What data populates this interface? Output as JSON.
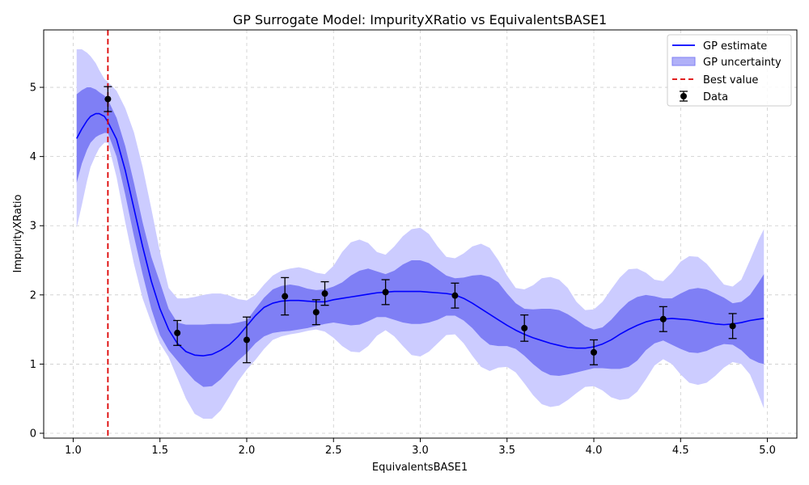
{
  "chart_data": {
    "type": "line",
    "title": "GP Surrogate Model: ImpurityXRatio vs EquivalentsBASE1",
    "xlabel": "EquivalentsBASE1",
    "ylabel": "ImpurityXRatio",
    "xlim": [
      0.83,
      5.17
    ],
    "ylim": [
      -0.07,
      5.83
    ],
    "x_ticks": [
      "1.0",
      "1.5",
      "2.0",
      "2.5",
      "3.0",
      "3.5",
      "4.0",
      "4.5",
      "5.0"
    ],
    "y_ticks": [
      "0",
      "1",
      "2",
      "3",
      "4",
      "5"
    ],
    "grid": true,
    "legend_position": "top-right",
    "legend": [
      "GP estimate",
      "GP uncertainty",
      "Best value",
      "Data"
    ],
    "best_value_x": 1.2,
    "gp": {
      "x": [
        1.02,
        1.05,
        1.08,
        1.1,
        1.13,
        1.15,
        1.18,
        1.2,
        1.25,
        1.3,
        1.35,
        1.4,
        1.45,
        1.5,
        1.55,
        1.6,
        1.65,
        1.7,
        1.75,
        1.8,
        1.85,
        1.9,
        1.95,
        2.0,
        2.05,
        2.1,
        2.15,
        2.2,
        2.25,
        2.3,
        2.35,
        2.4,
        2.45,
        2.5,
        2.55,
        2.6,
        2.65,
        2.7,
        2.75,
        2.8,
        2.85,
        2.9,
        2.95,
        3.0,
        3.05,
        3.1,
        3.15,
        3.2,
        3.25,
        3.3,
        3.35,
        3.4,
        3.45,
        3.5,
        3.55,
        3.6,
        3.65,
        3.7,
        3.75,
        3.8,
        3.85,
        3.9,
        3.95,
        4.0,
        4.05,
        4.1,
        4.15,
        4.2,
        4.25,
        4.3,
        4.35,
        4.4,
        4.45,
        4.5,
        4.55,
        4.6,
        4.65,
        4.7,
        4.75,
        4.8,
        4.85,
        4.9,
        4.95,
        4.98
      ],
      "mean": [
        4.26,
        4.4,
        4.52,
        4.58,
        4.62,
        4.62,
        4.58,
        4.5,
        4.25,
        3.8,
        3.25,
        2.7,
        2.2,
        1.8,
        1.5,
        1.3,
        1.18,
        1.13,
        1.12,
        1.14,
        1.2,
        1.28,
        1.4,
        1.55,
        1.7,
        1.82,
        1.88,
        1.91,
        1.92,
        1.92,
        1.91,
        1.9,
        1.9,
        1.93,
        1.95,
        1.97,
        1.99,
        2.01,
        2.03,
        2.04,
        2.05,
        2.05,
        2.05,
        2.05,
        2.04,
        2.03,
        2.02,
        2.0,
        1.95,
        1.88,
        1.8,
        1.72,
        1.64,
        1.56,
        1.49,
        1.43,
        1.38,
        1.34,
        1.3,
        1.27,
        1.24,
        1.23,
        1.23,
        1.25,
        1.29,
        1.35,
        1.43,
        1.5,
        1.56,
        1.61,
        1.64,
        1.65,
        1.66,
        1.65,
        1.64,
        1.62,
        1.6,
        1.58,
        1.57,
        1.58,
        1.6,
        1.63,
        1.65,
        1.66
      ],
      "inner_lower": [
        3.62,
        3.9,
        4.1,
        4.2,
        4.28,
        4.31,
        4.34,
        4.34,
        4.0,
        3.45,
        2.85,
        2.3,
        1.8,
        1.42,
        1.2,
        1.05,
        0.9,
        0.76,
        0.67,
        0.68,
        0.78,
        0.92,
        1.05,
        1.16,
        1.3,
        1.4,
        1.45,
        1.47,
        1.48,
        1.5,
        1.52,
        1.55,
        1.58,
        1.6,
        1.58,
        1.56,
        1.57,
        1.62,
        1.68,
        1.68,
        1.64,
        1.6,
        1.58,
        1.58,
        1.6,
        1.64,
        1.7,
        1.7,
        1.63,
        1.52,
        1.38,
        1.28,
        1.26,
        1.26,
        1.22,
        1.12,
        1.0,
        0.9,
        0.84,
        0.83,
        0.85,
        0.88,
        0.91,
        0.94,
        0.94,
        0.93,
        0.93,
        0.96,
        1.05,
        1.2,
        1.3,
        1.34,
        1.28,
        1.22,
        1.17,
        1.16,
        1.19,
        1.25,
        1.29,
        1.28,
        1.2,
        1.08,
        1.02,
        1.0
      ],
      "inner_upper": [
        4.9,
        4.96,
        5.0,
        5.0,
        4.97,
        4.93,
        4.88,
        4.82,
        4.56,
        4.15,
        3.62,
        3.05,
        2.55,
        2.18,
        1.8,
        1.6,
        1.57,
        1.57,
        1.57,
        1.58,
        1.58,
        1.58,
        1.6,
        1.63,
        1.8,
        1.96,
        2.08,
        2.13,
        2.15,
        2.13,
        2.09,
        2.07,
        2.08,
        2.12,
        2.18,
        2.28,
        2.35,
        2.38,
        2.34,
        2.3,
        2.35,
        2.44,
        2.5,
        2.5,
        2.46,
        2.37,
        2.28,
        2.24,
        2.25,
        2.28,
        2.29,
        2.26,
        2.18,
        2.02,
        1.88,
        1.8,
        1.79,
        1.8,
        1.8,
        1.78,
        1.72,
        1.64,
        1.55,
        1.5,
        1.53,
        1.64,
        1.78,
        1.9,
        1.97,
        2.0,
        1.98,
        1.95,
        1.95,
        2.02,
        2.08,
        2.1,
        2.08,
        2.02,
        1.96,
        1.88,
        1.9,
        2.0,
        2.18,
        2.3
      ],
      "outer_lower": [
        2.97,
        3.3,
        3.65,
        3.85,
        4.02,
        4.12,
        4.2,
        4.2,
        3.7,
        3.05,
        2.45,
        1.95,
        1.6,
        1.3,
        1.1,
        0.8,
        0.5,
        0.28,
        0.21,
        0.21,
        0.33,
        0.53,
        0.75,
        0.92,
        1.06,
        1.22,
        1.35,
        1.4,
        1.43,
        1.45,
        1.48,
        1.5,
        1.47,
        1.38,
        1.26,
        1.18,
        1.17,
        1.26,
        1.41,
        1.49,
        1.4,
        1.26,
        1.13,
        1.11,
        1.18,
        1.3,
        1.42,
        1.43,
        1.3,
        1.12,
        0.96,
        0.9,
        0.95,
        0.96,
        0.88,
        0.72,
        0.55,
        0.42,
        0.38,
        0.4,
        0.48,
        0.58,
        0.67,
        0.68,
        0.62,
        0.52,
        0.48,
        0.5,
        0.6,
        0.78,
        0.98,
        1.07,
        1.0,
        0.85,
        0.73,
        0.7,
        0.73,
        0.83,
        0.95,
        1.03,
        1.0,
        0.85,
        0.55,
        0.36
      ],
      "outer_upper": [
        5.55,
        5.55,
        5.5,
        5.45,
        5.35,
        5.25,
        5.12,
        5.08,
        4.95,
        4.7,
        4.35,
        3.85,
        3.25,
        2.62,
        2.1,
        1.95,
        1.95,
        1.97,
        2.0,
        2.02,
        2.02,
        1.99,
        1.94,
        1.92,
        2.0,
        2.15,
        2.28,
        2.35,
        2.38,
        2.4,
        2.37,
        2.32,
        2.3,
        2.42,
        2.62,
        2.76,
        2.8,
        2.75,
        2.62,
        2.58,
        2.7,
        2.85,
        2.95,
        2.97,
        2.88,
        2.7,
        2.55,
        2.53,
        2.6,
        2.7,
        2.74,
        2.68,
        2.5,
        2.28,
        2.1,
        2.08,
        2.14,
        2.24,
        2.26,
        2.22,
        2.1,
        1.9,
        1.78,
        1.79,
        1.9,
        2.08,
        2.25,
        2.37,
        2.38,
        2.32,
        2.22,
        2.2,
        2.32,
        2.48,
        2.56,
        2.55,
        2.45,
        2.3,
        2.15,
        2.12,
        2.22,
        2.5,
        2.8,
        2.95
      ]
    },
    "data_points": {
      "x": [
        1.2,
        1.6,
        2.0,
        2.22,
        2.4,
        2.45,
        2.8,
        3.2,
        3.6,
        4.0,
        4.4,
        4.8
      ],
      "y": [
        4.83,
        1.45,
        1.35,
        1.98,
        1.75,
        2.02,
        2.04,
        1.99,
        1.52,
        1.17,
        1.65,
        1.55
      ],
      "err": [
        0.18,
        0.18,
        0.33,
        0.27,
        0.18,
        0.17,
        0.18,
        0.18,
        0.19,
        0.18,
        0.18,
        0.18
      ]
    },
    "colors": {
      "mean_line": "#0000ff",
      "inner_band": "#7f7ff5",
      "outer_band": "#ccccff",
      "best_line": "#dd0000",
      "data": "#000000",
      "grid": "#cccccc"
    }
  }
}
